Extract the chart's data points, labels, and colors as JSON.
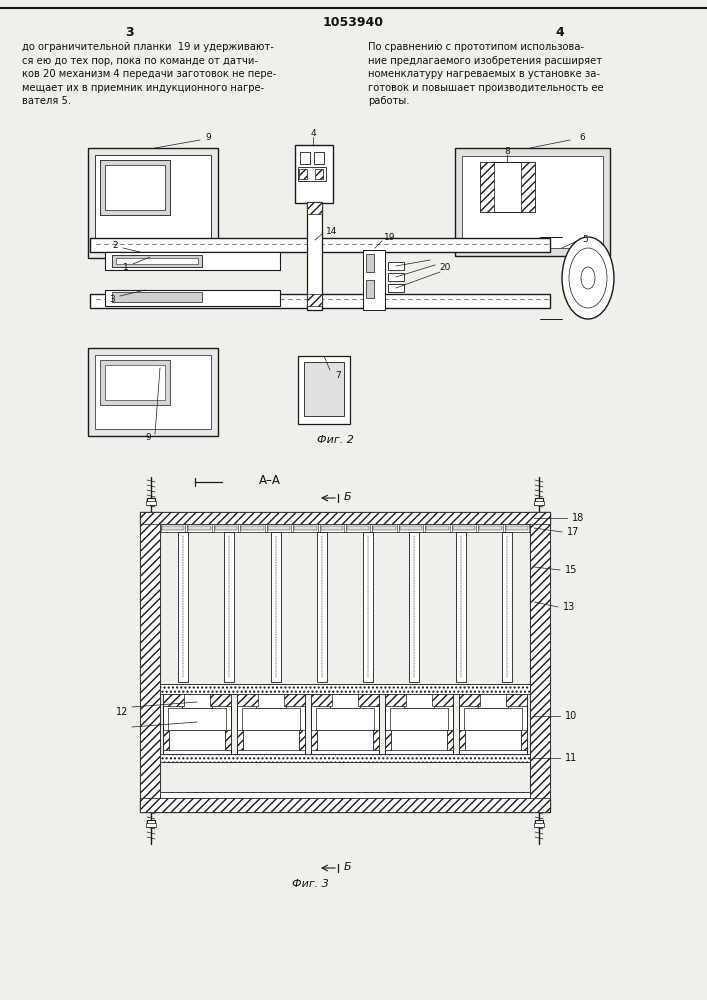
{
  "page_title": "1053940",
  "page_left_num": "3",
  "page_right_num": "4",
  "text_left": "до ограничительной планки  19 и удерживают-\nся ею до тех пор, пока по команде от датчи-\nков 20 механизм 4 передачи заготовок не пере-\nмещает их в приемник индукционного нагре-\nвателя 5.",
  "text_right": "По сравнению с прототипом использова-\nние предлагаемого изобретения расширяет\nноменклатуру нагреваемых в установке за-\nготовок и повышает производительность ее\nработы.",
  "fig2_caption": "Фиг. 2",
  "fig3_caption": "Фиг. 3",
  "section_label": "А–А",
  "b_label_top": "Б",
  "b_label_bot": "Б",
  "bg_color": "#f0f0eb",
  "line_color": "#1a1a1a",
  "text_color": "#111111"
}
